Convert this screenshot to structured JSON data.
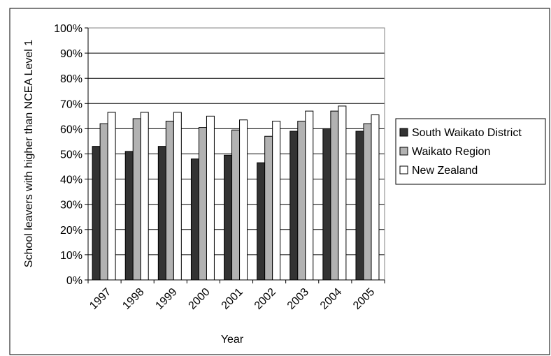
{
  "chart_data": {
    "type": "bar",
    "title": "",
    "xlabel": "Year",
    "ylabel": "School leavers with higher than NCEA Level 1",
    "ylim": [
      0,
      100
    ],
    "yticks": [
      "0%",
      "10%",
      "20%",
      "30%",
      "40%",
      "50%",
      "60%",
      "70%",
      "80%",
      "90%",
      "100%"
    ],
    "grid": true,
    "legend_position": "right",
    "categories": [
      "1997",
      "1998",
      "1999",
      "2000",
      "2001",
      "2002",
      "2003",
      "2004",
      "2005"
    ],
    "series": [
      {
        "name": "South Waikato District",
        "color": "#333333",
        "values": [
          53,
          51,
          53,
          48,
          49.5,
          46.5,
          59,
          60,
          59
        ]
      },
      {
        "name": "Waikato Region",
        "color": "#b2b2b2",
        "values": [
          62,
          64,
          63,
          60.5,
          59.5,
          57,
          63,
          67,
          62
        ]
      },
      {
        "name": "New Zealand",
        "color": "#ffffff",
        "values": [
          66.5,
          66.5,
          66.5,
          65,
          63.5,
          63,
          67,
          69,
          65.5
        ]
      }
    ]
  }
}
